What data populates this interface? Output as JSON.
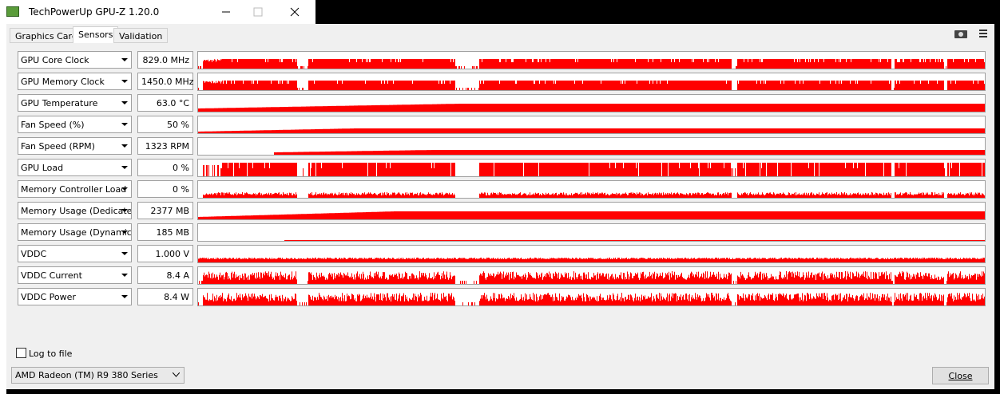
{
  "window": {
    "title": "TechPowerUp GPU-Z 1.20.0"
  },
  "tabs": [
    "Graphics Card",
    "Sensors",
    "Validation"
  ],
  "sensors": [
    {
      "label": "GPU Core Clock",
      "value": "829.0 MHz"
    },
    {
      "label": "GPU Memory Clock",
      "value": "1450.0 MHz"
    },
    {
      "label": "GPU Temperature",
      "value": "63.0 °C"
    },
    {
      "label": "Fan Speed (%)",
      "value": "50 %"
    },
    {
      "label": "Fan Speed (RPM)",
      "value": "1323 RPM"
    },
    {
      "label": "GPU Load",
      "value": "0 %"
    },
    {
      "label": "Memory Controller Load",
      "value": "0 %"
    },
    {
      "label": "Memory Usage (Dedicated)",
      "value": "2377 MB"
    },
    {
      "label": "Memory Usage (Dynamic)",
      "value": "185 MB"
    },
    {
      "label": "VDDC",
      "value": "1.000 V"
    },
    {
      "label": "VDDC Current",
      "value": "8.4 A"
    },
    {
      "label": "VDDC Power",
      "value": "8.4 W"
    }
  ],
  "log_to_file": "Log to file",
  "gpu_select": "AMD Radeon (TM) R9 380 Series",
  "close_button": "Close"
}
